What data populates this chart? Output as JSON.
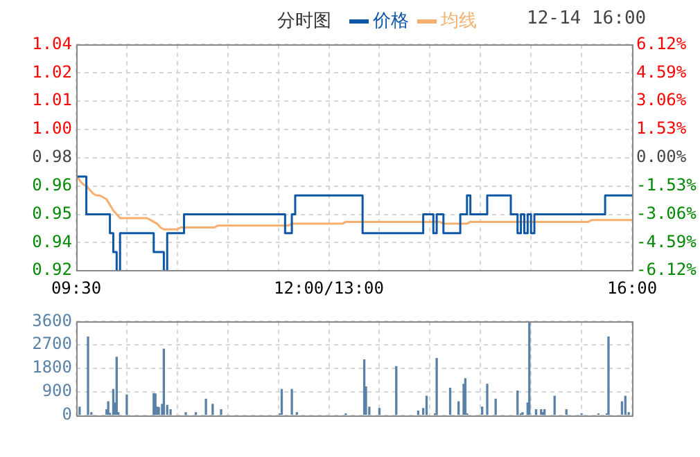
{
  "chart_data": [
    {
      "type": "step",
      "title": "分时图",
      "subtitle": "12-14 16:00",
      "legend": "top",
      "grid": true,
      "categories": [
        "09:30",
        null,
        null,
        null,
        null,
        null,
        null,
        null,
        null,
        null,
        null,
        null,
        null,
        null,
        null,
        null,
        null,
        null,
        null,
        null,
        null,
        null,
        null,
        null,
        null,
        null,
        null,
        null,
        null,
        null,
        null,
        null,
        null,
        null,
        null,
        null,
        null,
        null,
        null,
        null,
        null,
        null,
        null,
        null,
        null,
        null,
        null,
        null,
        null,
        null,
        null,
        null,
        null,
        null,
        null,
        null,
        null,
        null,
        null,
        null,
        null,
        null,
        null,
        null,
        null,
        null,
        null,
        null,
        null,
        null,
        null,
        null,
        null,
        null,
        null,
        "12:00/13:00",
        null,
        null,
        null,
        null,
        null,
        null,
        null,
        null,
        null,
        null,
        null,
        null,
        null,
        null,
        null,
        null,
        null,
        null,
        null,
        null,
        null,
        null,
        null,
        null,
        null,
        null,
        null,
        null,
        null,
        null,
        null,
        null,
        null,
        null,
        null,
        null,
        null,
        null,
        null,
        null,
        null,
        null,
        null,
        null,
        null,
        null,
        null,
        null,
        null,
        null,
        null,
        null,
        null,
        null,
        null,
        null,
        null,
        null,
        null,
        null,
        null,
        null,
        null,
        null,
        null,
        null,
        null,
        null,
        null,
        null,
        null,
        null,
        null,
        null,
        null,
        null,
        null,
        null,
        null,
        null,
        null,
        null,
        null,
        null,
        null,
        null,
        null,
        null,
        null,
        "16:00"
      ],
      "ylim": [
        0.92,
        1.04
      ],
      "yticks": [
        {
          "value": 0.92,
          "label": "0.92"
        },
        {
          "value": 0.935,
          "label": "0.94"
        },
        {
          "value": 0.95,
          "label": "0.95"
        },
        {
          "value": 0.965,
          "label": "0.96"
        },
        {
          "value": 0.98,
          "label": "0.98"
        },
        {
          "value": 0.995,
          "label": "1.00"
        },
        {
          "value": 1.01,
          "label": "1.01"
        },
        {
          "value": 1.025,
          "label": "1.02"
        },
        {
          "value": 1.04,
          "label": "1.04"
        }
      ],
      "y2lim": [
        -6.12,
        6.12
      ],
      "y2ticks": [
        {
          "value": -6.12,
          "label": "-6.12%"
        },
        {
          "value": -4.59,
          "label": "-4.59%"
        },
        {
          "value": -3.06,
          "label": "-3.06%"
        },
        {
          "value": -1.53,
          "label": "-1.53%"
        },
        {
          "value": 0,
          "label": "0.00%"
        },
        {
          "value": 1.53,
          "label": "1.53%"
        },
        {
          "value": 3.06,
          "label": "3.06%"
        },
        {
          "value": 4.59,
          "label": "4.59%"
        },
        {
          "value": 6.12,
          "label": "6.12%"
        }
      ],
      "series": [
        {
          "name": "价格",
          "color": "#0d57a6",
          "values": [
            0.97,
            0.97,
            0.97,
            0.95,
            0.95,
            0.95,
            0.95,
            0.95,
            0.95,
            0.95,
            0.94,
            0.93,
            0.92,
            0.94,
            0.94,
            0.94,
            0.94,
            0.94,
            0.94,
            0.94,
            0.94,
            0.94,
            0.94,
            0.93,
            0.93,
            0.93,
            0.92,
            0.94,
            0.94,
            0.94,
            0.94,
            0.94,
            0.95,
            0.95,
            0.95,
            0.95,
            0.95,
            0.95,
            0.95,
            0.95,
            0.95,
            0.95,
            0.95,
            0.95,
            0.95,
            0.95,
            0.95,
            0.95,
            0.95,
            0.95,
            0.95,
            0.95,
            0.95,
            0.95,
            0.95,
            0.95,
            0.95,
            0.95,
            0.95,
            0.95,
            0.95,
            0.95,
            0.94,
            0.94,
            0.95,
            0.96,
            0.96,
            0.96,
            0.96,
            0.96,
            0.96,
            0.96,
            0.96,
            0.96,
            0.96,
            0.96,
            0.96,
            0.96,
            0.96,
            0.96,
            0.96,
            0.96,
            0.96,
            0.96,
            0.96,
            0.94,
            0.94,
            0.94,
            0.94,
            0.94,
            0.94,
            0.94,
            0.94,
            0.94,
            0.94,
            0.94,
            0.94,
            0.94,
            0.94,
            0.94,
            0.94,
            0.94,
            0.94,
            0.95,
            0.95,
            0.95,
            0.94,
            0.95,
            0.95,
            0.94,
            0.94,
            0.94,
            0.94,
            0.94,
            0.95,
            0.95,
            0.96,
            0.95,
            0.95,
            0.95,
            0.95,
            0.95,
            0.96,
            0.96,
            0.96,
            0.96,
            0.96,
            0.96,
            0.96,
            0.95,
            0.95,
            0.94,
            0.95,
            0.94,
            0.95,
            0.94,
            0.95,
            0.95,
            0.95,
            0.95,
            0.95,
            0.95,
            0.95,
            0.95,
            0.95,
            0.95,
            0.95,
            0.95,
            0.95,
            0.95,
            0.95,
            0.95,
            0.95,
            0.95,
            0.95,
            0.95,
            0.95,
            0.96,
            0.96,
            0.96,
            0.96,
            0.96,
            0.96,
            0.96,
            0.96,
            0.96
          ]
        },
        {
          "name": "均线",
          "type": "line",
          "color": "#f5b070",
          "values": [
            0.971,
            0.968,
            0.966,
            0.965,
            0.963,
            0.961,
            0.96,
            0.96,
            0.959,
            0.958,
            0.955,
            0.952,
            0.95,
            0.948,
            0.948,
            0.948,
            0.948,
            0.948,
            0.948,
            0.948,
            0.948,
            0.948,
            0.947,
            0.946,
            0.945,
            0.943,
            0.942,
            0.942,
            0.942,
            0.942,
            0.942,
            0.943,
            0.943,
            0.943,
            0.943,
            0.943,
            0.943,
            0.943,
            0.943,
            0.943,
            0.943,
            0.943,
            0.944,
            0.944,
            0.944,
            0.944,
            0.944,
            0.944,
            0.944,
            0.944,
            0.944,
            0.944,
            0.944,
            0.944,
            0.944,
            0.944,
            0.944,
            0.944,
            0.944,
            0.944,
            0.944,
            0.944,
            0.944,
            0.944,
            0.945,
            0.945,
            0.945,
            0.945,
            0.945,
            0.945,
            0.945,
            0.945,
            0.945,
            0.945,
            0.945,
            0.945,
            0.945,
            0.945,
            0.945,
            0.945,
            0.946,
            0.946,
            0.946,
            0.946,
            0.946,
            0.946,
            0.946,
            0.946,
            0.946,
            0.946,
            0.946,
            0.946,
            0.946,
            0.946,
            0.946,
            0.946,
            0.946,
            0.946,
            0.946,
            0.946,
            0.946,
            0.946,
            0.946,
            0.946,
            0.946,
            0.946,
            0.946,
            0.946,
            0.946,
            0.945,
            0.945,
            0.945,
            0.945,
            0.945,
            0.945,
            0.945,
            0.945,
            0.946,
            0.946,
            0.946,
            0.946,
            0.946,
            0.946,
            0.946,
            0.946,
            0.946,
            0.946,
            0.946,
            0.946,
            0.946,
            0.946,
            0.946,
            0.946,
            0.946,
            0.946,
            0.946,
            0.946,
            0.946,
            0.946,
            0.946,
            0.946,
            0.946,
            0.946,
            0.946,
            0.946,
            0.946,
            0.946,
            0.946,
            0.946,
            0.946,
            0.946,
            0.946,
            0.946,
            0.947,
            0.947,
            0.947,
            0.947,
            0.947,
            0.947,
            0.947,
            0.947,
            0.947,
            0.947,
            0.947,
            0.947,
            0.947
          ]
        }
      ]
    },
    {
      "type": "bar",
      "grid": true,
      "tick_labels": "y",
      "color": "#5a82a8",
      "categories": [
        null,
        null,
        null,
        null,
        null,
        null,
        null,
        null,
        null,
        null,
        null,
        null,
        null,
        null,
        null,
        null,
        null,
        null,
        null,
        null,
        null,
        null,
        null,
        null,
        null,
        null,
        null,
        null,
        null,
        null,
        null,
        null,
        null,
        null,
        null,
        null,
        null,
        null,
        null,
        null,
        null,
        null,
        null,
        null,
        null,
        null,
        null,
        null,
        null,
        null,
        null,
        null,
        null,
        null,
        null,
        null,
        null,
        null,
        null,
        null,
        null,
        null,
        null,
        null,
        null,
        null,
        null,
        null,
        null,
        null,
        null,
        null,
        null,
        null,
        null,
        null,
        null,
        null,
        null,
        null,
        null,
        null,
        null,
        null,
        null,
        null,
        null,
        null,
        null,
        null,
        null,
        null,
        null,
        null,
        null,
        null,
        null,
        null,
        null,
        null,
        null,
        null,
        null,
        null,
        null,
        null,
        null,
        null,
        null,
        null,
        null,
        null,
        null,
        null,
        null,
        null,
        null,
        null,
        null,
        null,
        null,
        null,
        null,
        null,
        null,
        null,
        null,
        null,
        null,
        null,
        null,
        null,
        null,
        null,
        null,
        null,
        null,
        null,
        null,
        null,
        null,
        null,
        null,
        null,
        null,
        null,
        null,
        null,
        null,
        null,
        null,
        null,
        null,
        null,
        null,
        null,
        null,
        null,
        null,
        null,
        null,
        null,
        null,
        null,
        null,
        null,
        null,
        null,
        null,
        null,
        null,
        null,
        null,
        null,
        null,
        null,
        null,
        null,
        null,
        null,
        null,
        null,
        null,
        null,
        null,
        null,
        null,
        null,
        null,
        null,
        null,
        null,
        null,
        null,
        null,
        null,
        null,
        null,
        null,
        null,
        null,
        null,
        null,
        null,
        null,
        null,
        null,
        null,
        null,
        null,
        null,
        null,
        null,
        null,
        null,
        null,
        null,
        null,
        null,
        null,
        null,
        null,
        null,
        null,
        null,
        null,
        null,
        null,
        null,
        null,
        null,
        null,
        null,
        null,
        null,
        null,
        null,
        null,
        null,
        null,
        null,
        null,
        null,
        null,
        null,
        null,
        null,
        null,
        null,
        null,
        null,
        null,
        null,
        null,
        null,
        null,
        null,
        null,
        null,
        null,
        null,
        null,
        null,
        null,
        null,
        null,
        null,
        null,
        null,
        null,
        null,
        null,
        null,
        null,
        null,
        null,
        null,
        null,
        null,
        null,
        null,
        null,
        null,
        null,
        null,
        null,
        null,
        null,
        null,
        null,
        null,
        null,
        null,
        null,
        null,
        null,
        null,
        null,
        null,
        null,
        null,
        null,
        null,
        null,
        null,
        null,
        null,
        null,
        null,
        null,
        null,
        null,
        null,
        null,
        null,
        null,
        null,
        null,
        null,
        null,
        null,
        null,
        null,
        null,
        null,
        null,
        null,
        null,
        null,
        null,
        null
      ],
      "ylim": [
        0,
        3600
      ],
      "yticks": [
        0,
        900,
        1800,
        2700,
        3600
      ],
      "values": [
        null,
        null,
        310,
        null,
        null,
        null,
        null,
        3010,
        null,
        100,
        null,
        null,
        null,
        null,
        null,
        null,
        null,
        null,
        210,
        520,
        70,
        null,
        990,
        470,
        2230,
        100,
        null,
        null,
        null,
        null,
        780,
        null,
        null,
        null,
        null,
        null,
        null,
        null,
        null,
        null,
        null,
        null,
        null,
        null,
        null,
        null,
        830,
        820,
        310,
        300,
        null,
        420,
        2540,
        null,
        380,
        null,
        210,
        null,
        null,
        null,
        null,
        null,
        null,
        null,
        null,
        100,
        null,
        null,
        null,
        null,
        null,
        100,
        null,
        null,
        null,
        null,
        null,
        620,
        null,
        null,
        null,
        420,
        null,
        null,
        null,
        null,
        210,
        null,
        null,
        null,
        null,
        null,
        null,
        null,
        null,
        null,
        null,
        null,
        null,
        null,
        null,
        null,
        null,
        null,
        null,
        null,
        null,
        null,
        null,
        null,
        null,
        null,
        null,
        null,
        null,
        null,
        null,
        null,
        null,
        null,
        null,
        50,
        990,
        null,
        null,
        null,
        null,
        null,
        990,
        null,
        null,
        100,
        null,
        null,
        null,
        null,
        null,
        null,
        null,
        null,
        null,
        null,
        null,
        null,
        null,
        null,
        null,
        null,
        null,
        null,
        null,
        null,
        null,
        null,
        null,
        null,
        null,
        null,
        null,
        null,
        50,
        null,
        null,
        null,
        null,
        null,
        null,
        null,
        null,
        null,
        null,
        2130,
        1090,
        null,
        310,
        null,
        null,
        null,
        null,
        null,
        260,
        null,
        null,
        null,
        null,
        null,
        null,
        null,
        null,
        null,
        1870,
        null,
        null,
        null,
        null,
        null,
        null,
        null,
        null,
        null,
        null,
        null,
        null,
        160,
        null,
        null,
        260,
        null,
        730,
        null,
        null,
        null,
        null,
        50,
        2180,
        null,
        null,
        null,
        null,
        null,
        null,
        null,
        1040,
        null,
        null,
        null,
        null,
        520,
        null,
        null,
        1190,
        1400,
        50,
        null,
        null,
        null,
        null,
        null,
        null,
        null,
        null,
        310,
        null,
        null,
        1190,
        null,
        null,
        null,
        null,
        620,
        null,
        null,
        null,
        null,
        null,
        null,
        null,
        null,
        null,
        null,
        null,
        null,
        930,
        null,
        50,
        100,
        null,
        null,
        470,
        3600,
        null,
        null,
        null,
        210,
        null,
        null,
        210,
        100,
        210,
        null,
        null,
        null,
        null,
        null,
        730,
        null,
        null,
        null,
        null,
        null,
        null,
        210,
        null,
        null,
        null,
        null,
        null,
        null,
        null,
        null,
        50,
        null,
        null,
        null,
        null,
        null,
        null,
        null,
        null,
        null,
        50,
        null,
        null,
        null,
        null,
        50,
        3010,
        null,
        null,
        null,
        null,
        null,
        null,
        null,
        520,
        null,
        730,
        null,
        100,
        null,
        null
      ]
    }
  ]
}
